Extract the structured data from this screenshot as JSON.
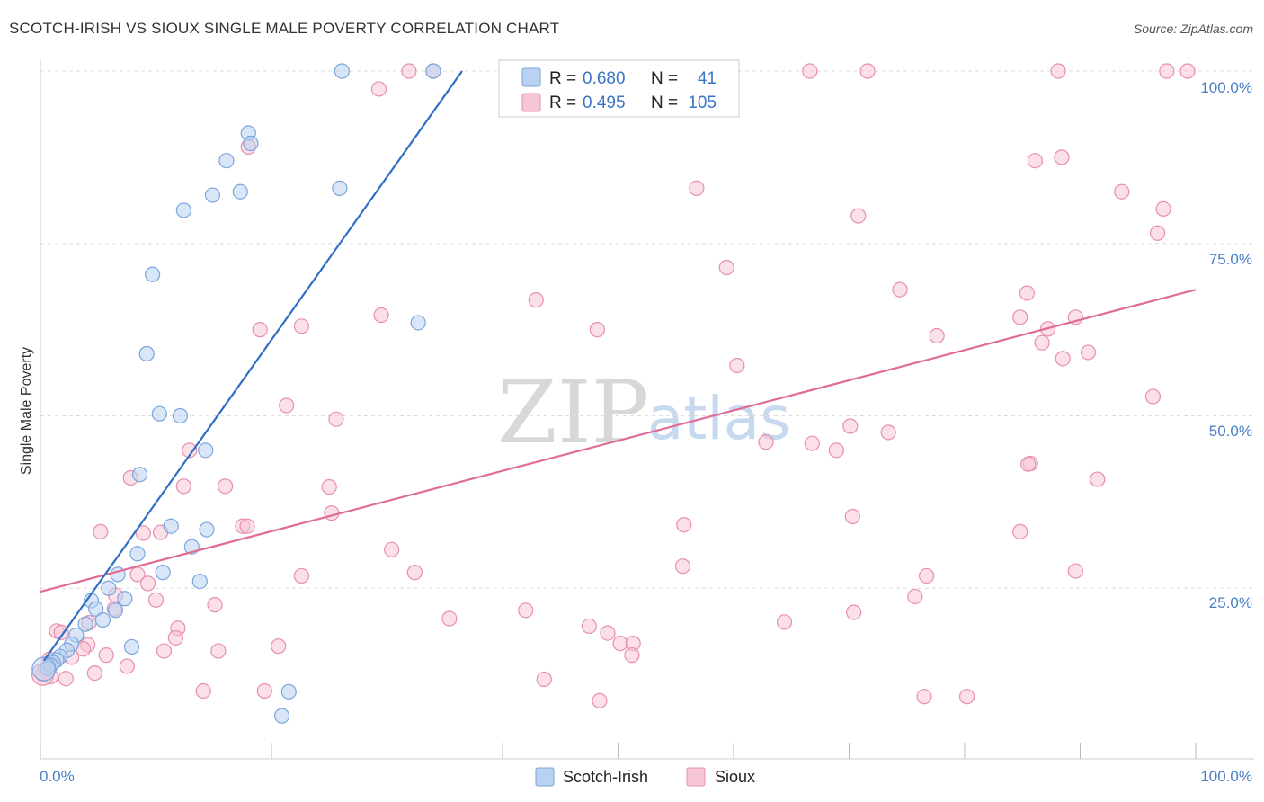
{
  "header": {
    "title": "SCOTCH-IRISH VS SIOUX SINGLE MALE POVERTY CORRELATION CHART",
    "source": "Source: ZipAtlas.com"
  },
  "watermark": {
    "zip": "ZIP",
    "atlas": "atlas"
  },
  "colors": {
    "blue_fill": "#b9d2f1",
    "blue_stroke": "#7aa6dd",
    "blue_line": "#2f6fc6",
    "pink_fill": "#f7c6d6",
    "pink_stroke": "#e88eae",
    "pink_line": "#e06c96",
    "grid": "#dddddd",
    "axis_text": "#4a7ec8"
  },
  "legend": {
    "rows": [
      {
        "r_label": "R =",
        "r_value": "0.680",
        "n_label": "N =",
        "n_value": "41"
      },
      {
        "r_label": "R =",
        "r_value": "0.495",
        "n_label": "N =",
        "n_value": "105"
      }
    ]
  },
  "bottom_legend": {
    "series": [
      "Scotch-Irish",
      "Sioux"
    ]
  },
  "chart_data": {
    "type": "scatter",
    "title": "SCOTCH-IRISH VS SIOUX SINGLE MALE POVERTY CORRELATION CHART",
    "xlabel": "",
    "ylabel": "Single Male Poverty",
    "xlim": [
      0,
      100
    ],
    "ylim": [
      0,
      100
    ],
    "x_tick_labels": [
      "0.0%",
      "100.0%"
    ],
    "y_ticks": [
      25,
      50,
      75,
      100
    ],
    "y_tick_labels": [
      "25.0%",
      "50.0%",
      "75.0%",
      "100.0%"
    ],
    "series": [
      {
        "name": "Scotch-Irish",
        "r": 0.68,
        "n": 41,
        "trend": {
          "x": [
            0.3,
            36.5
          ],
          "y": [
            14.5,
            100
          ]
        },
        "points": [
          [
            26.1,
            100
          ],
          [
            34.0,
            100
          ],
          [
            18.0,
            91
          ],
          [
            18.2,
            89.5
          ],
          [
            16.1,
            87
          ],
          [
            14.9,
            82
          ],
          [
            17.3,
            82.5
          ],
          [
            25.9,
            83
          ],
          [
            12.4,
            79.8
          ],
          [
            9.7,
            70.5
          ],
          [
            9.2,
            59
          ],
          [
            32.7,
            63.5
          ],
          [
            10.3,
            50.3
          ],
          [
            12.1,
            50
          ],
          [
            14.3,
            45
          ],
          [
            8.6,
            41.5
          ],
          [
            11.3,
            34
          ],
          [
            14.4,
            33.5
          ],
          [
            13.1,
            31
          ],
          [
            8.4,
            30
          ],
          [
            10.6,
            27.3
          ],
          [
            6.7,
            27
          ],
          [
            13.8,
            26
          ],
          [
            5.9,
            25
          ],
          [
            7.3,
            23.5
          ],
          [
            4.4,
            23.2
          ],
          [
            4.8,
            22
          ],
          [
            6.5,
            21.8
          ],
          [
            5.4,
            20.4
          ],
          [
            3.9,
            19.8
          ],
          [
            3.1,
            18.2
          ],
          [
            2.7,
            16.9
          ],
          [
            7.9,
            16.5
          ],
          [
            2.3,
            16
          ],
          [
            1.7,
            15.1
          ],
          [
            1.4,
            14.6
          ],
          [
            1.1,
            14.2
          ],
          [
            0.9,
            13.8
          ],
          [
            0.6,
            13.4
          ],
          [
            20.9,
            6.5
          ],
          [
            21.5,
            10
          ]
        ],
        "point_sizes": {
          "0.3,13.3": "large"
        }
      },
      {
        "name": "Sioux",
        "r": 0.495,
        "n": 105,
        "trend": {
          "x": [
            0,
            100
          ],
          "y": [
            24.5,
            68.3
          ]
        },
        "points": [
          [
            31.9,
            100
          ],
          [
            34.0,
            100
          ],
          [
            51.8,
            100
          ],
          [
            66.6,
            100
          ],
          [
            71.6,
            100
          ],
          [
            88.1,
            100
          ],
          [
            97.5,
            100
          ],
          [
            99.3,
            100
          ],
          [
            29.3,
            97.4
          ],
          [
            18.0,
            89
          ],
          [
            86.1,
            87
          ],
          [
            88.4,
            87.5
          ],
          [
            56.8,
            83
          ],
          [
            93.6,
            82.5
          ],
          [
            70.8,
            79
          ],
          [
            97.2,
            80
          ],
          [
            96.7,
            76.5
          ],
          [
            59.4,
            71.5
          ],
          [
            74.4,
            68.3
          ],
          [
            85.4,
            67.8
          ],
          [
            42.9,
            66.8
          ],
          [
            29.5,
            64.6
          ],
          [
            84.8,
            64.3
          ],
          [
            89.6,
            64.3
          ],
          [
            19.0,
            62.5
          ],
          [
            22.6,
            63
          ],
          [
            48.2,
            62.5
          ],
          [
            87.2,
            62.6
          ],
          [
            77.6,
            61.6
          ],
          [
            86.7,
            60.6
          ],
          [
            88.5,
            58.3
          ],
          [
            90.7,
            59.2
          ],
          [
            60.3,
            57.3
          ],
          [
            21.3,
            51.5
          ],
          [
            25.6,
            49.5
          ],
          [
            96.3,
            52.8
          ],
          [
            70.1,
            48.5
          ],
          [
            73.4,
            47.6
          ],
          [
            62.8,
            46.2
          ],
          [
            66.8,
            46
          ],
          [
            68.9,
            45
          ],
          [
            12.9,
            45
          ],
          [
            85.7,
            43.1
          ],
          [
            85.5,
            43
          ],
          [
            91.5,
            40.8
          ],
          [
            7.8,
            41
          ],
          [
            12.4,
            39.8
          ],
          [
            16.0,
            39.8
          ],
          [
            25.0,
            39.7
          ],
          [
            70.3,
            35.4
          ],
          [
            25.2,
            35.9
          ],
          [
            17.5,
            34
          ],
          [
            17.9,
            34
          ],
          [
            5.2,
            33.2
          ],
          [
            8.9,
            33
          ],
          [
            10.4,
            33.1
          ],
          [
            84.8,
            33.2
          ],
          [
            55.7,
            34.2
          ],
          [
            30.4,
            30.6
          ],
          [
            8.4,
            27
          ],
          [
            32.4,
            27.3
          ],
          [
            55.6,
            28.2
          ],
          [
            22.6,
            26.8
          ],
          [
            89.6,
            27.5
          ],
          [
            76.7,
            26.8
          ],
          [
            9.3,
            25.7
          ],
          [
            75.7,
            23.8
          ],
          [
            10.0,
            23.3
          ],
          [
            15.1,
            22.6
          ],
          [
            6.5,
            24
          ],
          [
            6.4,
            22
          ],
          [
            70.4,
            21.5
          ],
          [
            42.0,
            21.8
          ],
          [
            35.4,
            20.6
          ],
          [
            64.4,
            20.1
          ],
          [
            47.5,
            19.5
          ],
          [
            4.2,
            20
          ],
          [
            11.9,
            19.2
          ],
          [
            1.4,
            18.8
          ],
          [
            1.8,
            18.6
          ],
          [
            49.1,
            18.5
          ],
          [
            11.7,
            17.8
          ],
          [
            50.2,
            17
          ],
          [
            4.1,
            16.8
          ],
          [
            51.3,
            17
          ],
          [
            3.7,
            16.2
          ],
          [
            20.6,
            16.6
          ],
          [
            10.7,
            15.9
          ],
          [
            15.4,
            15.9
          ],
          [
            5.7,
            15.3
          ],
          [
            2.7,
            15
          ],
          [
            0.8,
            14.7
          ],
          [
            51.2,
            15.3
          ],
          [
            0.4,
            13.2
          ],
          [
            7.5,
            13.7
          ],
          [
            0.9,
            12.2
          ],
          [
            2.2,
            11.9
          ],
          [
            4.7,
            12.7
          ],
          [
            43.6,
            11.8
          ],
          [
            14.1,
            10.1
          ],
          [
            19.4,
            10.1
          ],
          [
            48.4,
            8.7
          ],
          [
            76.5,
            9.3
          ],
          [
            80.2,
            9.3
          ],
          [
            0.2,
            12.5
          ]
        ]
      }
    ]
  }
}
